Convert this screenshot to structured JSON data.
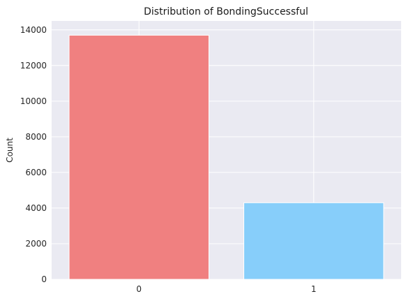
{
  "chart_data": {
    "type": "bar",
    "title": "Distribution of BondingSuccessful",
    "xlabel": "",
    "ylabel": "Count",
    "categories": [
      "0",
      "1"
    ],
    "values": [
      13700,
      4300
    ],
    "bar_colors": [
      "#f08080",
      "#87cefa"
    ],
    "ylim": [
      0,
      14500
    ],
    "yticks": [
      0,
      2000,
      4000,
      6000,
      8000,
      10000,
      12000,
      14000
    ],
    "ytick_labels": [
      "0",
      "2000",
      "4000",
      "6000",
      "8000",
      "10000",
      "12000",
      "14000"
    ],
    "grid": true,
    "background_color": "#eaeaf2",
    "grid_color": "#ffffff"
  }
}
